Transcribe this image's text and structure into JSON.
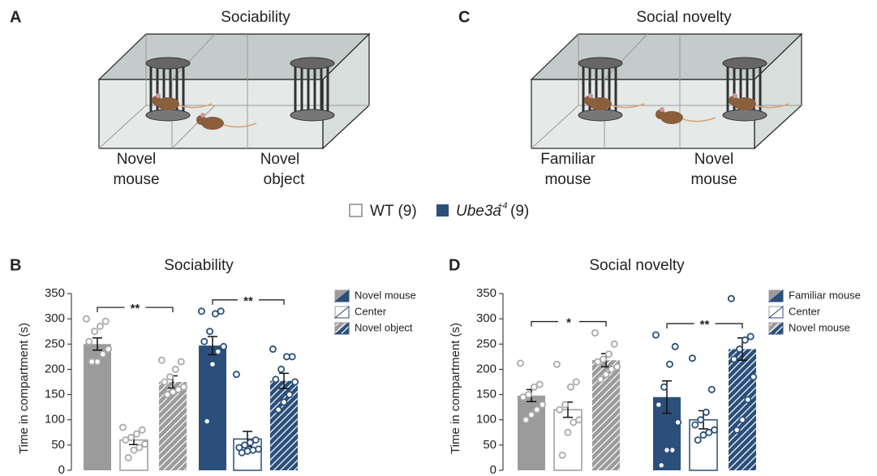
{
  "panels": [
    {
      "letter": "A",
      "title": "Sociability",
      "left_label": [
        "Novel",
        "mouse"
      ],
      "right_label": [
        "Novel",
        "object"
      ]
    },
    {
      "letter": "C",
      "title": "Social novelty",
      "left_label": [
        "Familiar",
        "mouse"
      ],
      "right_label": [
        "Novel",
        "mouse"
      ]
    }
  ],
  "legend": {
    "groups": [
      {
        "label": "WT (9)"
      },
      {
        "label": "Ube3a",
        "superscript": "+4",
        "suffix": "(9)"
      }
    ]
  },
  "chart_data": [
    {
      "type": "bar",
      "panel": "B",
      "title": "Sociability",
      "y_label": "Time in compartment (s)",
      "ylim": [
        0,
        350
      ],
      "yticks": [
        0,
        50,
        100,
        150,
        200,
        250,
        300,
        350
      ],
      "categories": [
        null,
        null
      ],
      "colors": [
        "#9b9b9b",
        "#2b4f7a"
      ],
      "legend_position": "right",
      "series": [
        {
          "name": "Novel mouse",
          "pattern": "solid",
          "values": [
            250,
            247
          ],
          "errors": [
            12,
            18
          ],
          "points": [
            [
              300,
              295,
              285,
              275,
              255,
              240,
              230,
              215,
              215
            ],
            [
              315,
              315,
              310,
              275,
              255,
              245,
              235,
              210,
              97
            ]
          ]
        },
        {
          "name": "Center",
          "pattern": "hollow",
          "values": [
            60,
            62
          ],
          "errors": [
            9,
            15
          ],
          "points": [
            [
              85,
              80,
              72,
              65,
              60,
              52,
              45,
              40,
              25
            ],
            [
              190,
              60,
              55,
              50,
              45,
              42,
              40,
              38,
              35
            ]
          ]
        },
        {
          "name": "Novel object",
          "pattern": "hatched",
          "values": [
            175,
            177
          ],
          "errors": [
            12,
            15
          ],
          "points": [
            [
              218,
              215,
              200,
              185,
              175,
              165,
              160,
              155,
              150
            ],
            [
              240,
              225,
              225,
              200,
              180,
              175,
              150,
              135,
              120
            ]
          ]
        }
      ],
      "significance": [
        {
          "label": "**",
          "group": 0,
          "from": 0,
          "to": 2
        },
        {
          "label": "**",
          "group": 1,
          "from": 0,
          "to": 2
        }
      ]
    },
    {
      "type": "bar",
      "panel": "D",
      "title": "Social novelty",
      "y_label": "Time in compartment (s)",
      "ylim": [
        0,
        350
      ],
      "yticks": [
        0,
        50,
        100,
        150,
        200,
        250,
        300,
        350
      ],
      "categories": [
        null,
        null
      ],
      "colors": [
        "#9b9b9b",
        "#2b4f7a"
      ],
      "legend_position": "right",
      "series": [
        {
          "name": "Familiar mouse",
          "pattern": "solid",
          "values": [
            148,
            145
          ],
          "errors": [
            12,
            32
          ],
          "points": [
            [
              212,
              170,
              165,
              150,
              145,
              130,
              120,
              110,
              100
            ],
            [
              268,
              245,
              210,
              165,
              130,
              95,
              40,
              40,
              10
            ]
          ]
        },
        {
          "name": "Center",
          "pattern": "hollow",
          "values": [
            120,
            100
          ],
          "errors": [
            15,
            18
          ],
          "points": [
            [
              210,
              175,
              165,
              130,
              120,
              100,
              95,
              75,
              30
            ],
            [
              222,
              160,
              115,
              100,
              90,
              80,
              75,
              70,
              60
            ]
          ]
        },
        {
          "name": "Novel mouse",
          "pattern": "hatched",
          "values": [
            218,
            240
          ],
          "errors": [
            13,
            22
          ],
          "points": [
            [
              272,
              250,
              230,
              220,
              215,
              205,
              200,
              190,
              180
            ],
            [
              340,
              265,
              258,
              240,
              220,
              185,
              140,
              100,
              80
            ]
          ]
        }
      ],
      "significance": [
        {
          "label": "*",
          "group": 0,
          "from": 0,
          "to": 2
        },
        {
          "label": "**",
          "group": 1,
          "from": 0,
          "to": 2
        }
      ]
    }
  ]
}
